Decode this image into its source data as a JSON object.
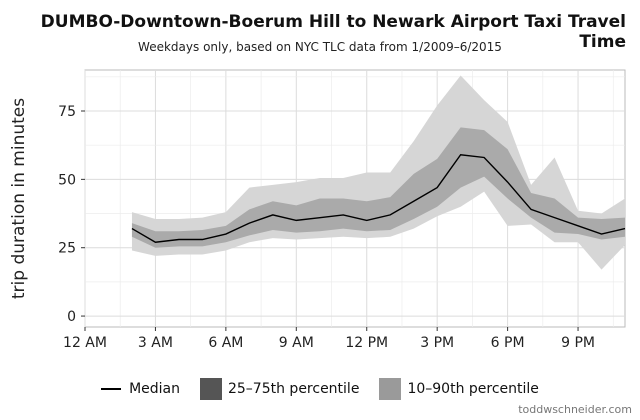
{
  "title": "DUMBO-Downtown-Boerum Hill to Newark Airport Taxi Travel Time",
  "subtitle": "Weekdays only, based on NYC TLC data from 1/2009–6/2015",
  "credit": "toddwschneider.com",
  "legend": {
    "median": "Median",
    "iqr": "25–75th percentile",
    "p10_90": "10–90th percentile"
  },
  "colors": {
    "band_outer": "#d6d6d6",
    "band_inner": "#aaaaaa",
    "median": "#000000",
    "grid": "#dcdcdc",
    "legend_iqr": "#555555",
    "legend_outer": "#9a9a9a"
  },
  "chart_data": {
    "type": "area",
    "title": "DUMBO-Downtown-Boerum Hill to Newark Airport Taxi Travel Time",
    "subtitle": "Weekdays only, based on NYC TLC data from 1/2009–6/2015",
    "xlabel": "",
    "ylabel": "trip duration in minutes",
    "xlim": [
      0,
      23
    ],
    "ylim": [
      0,
      90
    ],
    "grid": true,
    "legend_position": "bottom",
    "x_ticks": [
      0,
      3,
      6,
      9,
      12,
      15,
      18,
      21
    ],
    "x_tick_labels": [
      "12 AM",
      "3 AM",
      "6 AM",
      "9 AM",
      "12 PM",
      "3 PM",
      "6 PM",
      "9 PM"
    ],
    "y_ticks": [
      0,
      25,
      50,
      75
    ],
    "x": [
      2,
      3,
      4,
      5,
      6,
      7,
      8,
      9,
      10,
      11,
      12,
      13,
      14,
      15,
      16,
      17,
      18,
      19,
      20,
      21,
      22,
      23
    ],
    "series": [
      {
        "name": "Median",
        "values": [
          32,
          27,
          28,
          28,
          30,
          34,
          37,
          35,
          36,
          37,
          35,
          37,
          42,
          47,
          59,
          58,
          49,
          39,
          36,
          33,
          30,
          32
        ]
      },
      {
        "name": "25th",
        "values": [
          29,
          25,
          25.5,
          25.5,
          27,
          29.5,
          31.5,
          30.5,
          31,
          32,
          31,
          31.5,
          35.5,
          40,
          47,
          51,
          43,
          36,
          30.5,
          30,
          28,
          29
        ]
      },
      {
        "name": "75th",
        "values": [
          34,
          31,
          31,
          31.5,
          33,
          39,
          42,
          40.5,
          43,
          43,
          42,
          43.5,
          52,
          57.5,
          69,
          68,
          61,
          45,
          43,
          36,
          35.5,
          36
        ]
      },
      {
        "name": "10th",
        "values": [
          24,
          22,
          22.5,
          22.5,
          24,
          27,
          28.5,
          28,
          28.5,
          29,
          28.5,
          29,
          32,
          36.5,
          40,
          45.5,
          33,
          33.5,
          27,
          27,
          17,
          26
        ]
      },
      {
        "name": "90th",
        "values": [
          38,
          35.5,
          35.5,
          36,
          38,
          47,
          48,
          49,
          50.5,
          50.5,
          52.5,
          52.5,
          64,
          77,
          88,
          79,
          71,
          48,
          58,
          38.5,
          37.5,
          43
        ]
      }
    ]
  }
}
